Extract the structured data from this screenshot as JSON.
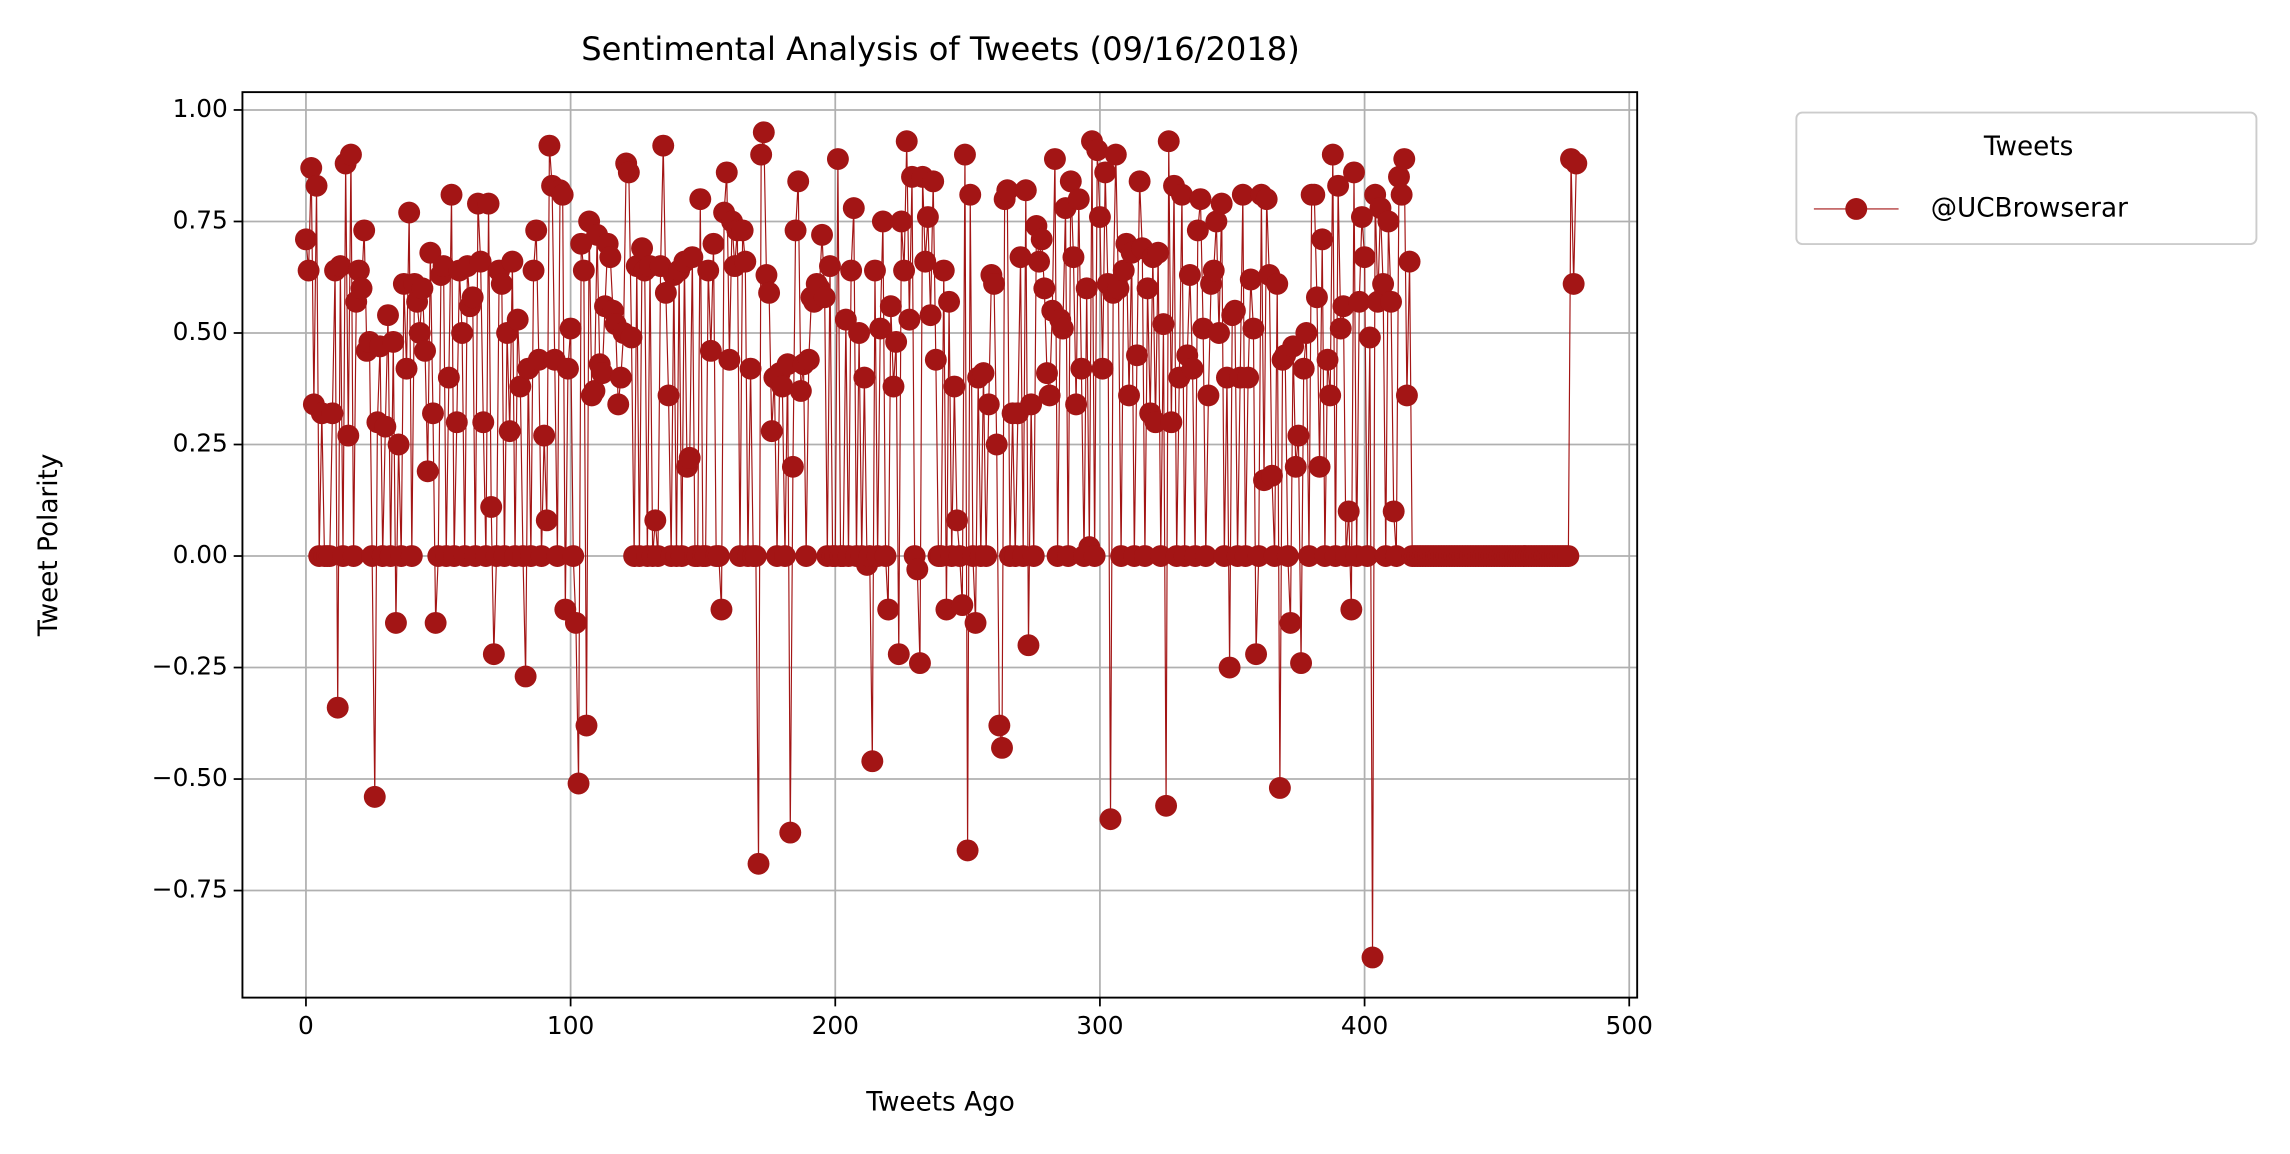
{
  "chart_data": {
    "type": "line",
    "title": "Sentimental Analysis of Tweets (09/16/2018)",
    "xlabel": "Tweets Ago",
    "ylabel": "Tweet Polarity",
    "legend_title": "Tweets",
    "legend": "upper right outside",
    "grid": true,
    "marker": "o",
    "xlim": [
      -24,
      503
    ],
    "ylim": [
      -0.99,
      1.04
    ],
    "xticks": [
      0,
      100,
      200,
      300,
      400,
      500
    ],
    "yticks": [
      {
        "value": -0.75,
        "label": "−0.75"
      },
      {
        "value": -0.5,
        "label": "−0.50"
      },
      {
        "value": -0.25,
        "label": "−0.25"
      },
      {
        "value": 0,
        "label": "0.00"
      },
      {
        "value": 0.25,
        "label": "0.25"
      },
      {
        "value": 0.5,
        "label": "0.50"
      },
      {
        "value": 0.75,
        "label": "0.75"
      },
      {
        "value": 1,
        "label": "1.00"
      }
    ],
    "x": [
      0,
      1,
      2,
      3,
      4,
      5,
      6,
      7,
      8,
      9,
      10,
      11,
      12,
      13,
      14,
      15,
      16,
      17,
      18,
      19,
      20,
      21,
      22,
      23,
      24,
      25,
      26,
      27,
      28,
      29,
      30,
      31,
      32,
      33,
      34,
      35,
      36,
      37,
      38,
      39,
      40,
      41,
      42,
      43,
      44,
      45,
      46,
      47,
      48,
      49,
      50,
      51,
      52,
      53,
      54,
      55,
      56,
      57,
      58,
      59,
      60,
      61,
      62,
      63,
      64,
      65,
      66,
      67,
      68,
      69,
      70,
      71,
      72,
      73,
      74,
      75,
      76,
      77,
      78,
      79,
      80,
      81,
      82,
      83,
      84,
      85,
      86,
      87,
      88,
      89,
      90,
      91,
      92,
      93,
      94,
      95,
      96,
      97,
      98,
      99,
      100,
      101,
      102,
      103,
      104,
      105,
      106,
      107,
      108,
      109,
      110,
      111,
      112,
      113,
      114,
      115,
      116,
      117,
      118,
      119,
      120,
      121,
      122,
      123,
      124,
      125,
      126,
      127,
      128,
      129,
      130,
      131,
      132,
      133,
      134,
      135,
      136,
      137,
      138,
      139,
      140,
      141,
      142,
      143,
      144,
      145,
      146,
      147,
      148,
      149,
      150,
      151,
      152,
      153,
      154,
      155,
      156,
      157,
      158,
      159,
      160,
      161,
      162,
      163,
      164,
      165,
      166,
      167,
      168,
      169,
      170,
      171,
      172,
      173,
      174,
      175,
      176,
      177,
      178,
      179,
      180,
      181,
      182,
      183,
      184,
      185,
      186,
      187,
      188,
      189,
      190,
      191,
      192,
      193,
      194,
      195,
      196,
      197,
      198,
      199,
      200,
      201,
      202,
      203,
      204,
      205,
      206,
      207,
      208,
      209,
      210,
      211,
      212,
      213,
      214,
      215,
      216,
      217,
      218,
      219,
      220,
      221,
      222,
      223,
      224,
      225,
      226,
      227,
      228,
      229,
      230,
      231,
      232,
      233,
      234,
      235,
      236,
      237,
      238,
      239,
      240,
      241,
      242,
      243,
      244,
      245,
      246,
      247,
      248,
      249,
      250,
      251,
      252,
      253,
      254,
      255,
      256,
      257,
      258,
      259,
      260,
      261,
      262,
      263,
      264,
      265,
      266,
      267,
      268,
      269,
      270,
      271,
      272,
      273,
      274,
      275,
      276,
      277,
      278,
      279,
      280,
      281,
      282,
      283,
      284,
      285,
      286,
      287,
      288,
      289,
      290,
      291,
      292,
      293,
      294,
      295,
      296,
      297,
      298,
      299,
      300,
      301,
      302,
      303,
      304,
      305,
      306,
      307,
      308,
      309,
      310,
      311,
      312,
      313,
      314,
      315,
      316,
      317,
      318,
      319,
      320,
      321,
      322,
      323,
      324,
      325,
      326,
      327,
      328,
      329,
      330,
      331,
      332,
      333,
      334,
      335,
      336,
      337,
      338,
      339,
      340,
      341,
      342,
      343,
      344,
      345,
      346,
      347,
      348,
      349,
      350,
      351,
      352,
      353,
      354,
      355,
      356,
      357,
      358,
      359,
      360,
      361,
      362,
      363,
      364,
      365,
      366,
      367,
      368,
      369,
      370,
      371,
      372,
      373,
      374,
      375,
      376,
      377,
      378,
      379,
      380,
      381,
      382,
      383,
      384,
      385,
      386,
      387,
      388,
      389,
      390,
      391,
      392,
      393,
      394,
      395,
      396,
      397,
      398,
      399,
      400,
      401,
      402,
      403,
      404,
      405,
      406,
      407,
      408,
      409,
      410,
      411,
      412,
      413,
      414,
      415,
      416,
      417,
      418,
      419,
      420,
      421,
      422,
      423,
      424,
      425,
      426,
      427,
      428,
      429,
      430,
      431,
      432,
      433,
      434,
      435,
      436,
      437,
      438,
      439,
      440,
      441,
      442,
      443,
      444,
      445,
      446,
      447,
      448,
      449,
      450,
      451,
      452,
      453,
      454,
      455,
      456,
      457,
      458,
      459,
      460,
      461,
      462,
      463,
      464,
      465,
      466,
      467,
      468,
      469,
      470,
      471,
      472,
      473,
      474,
      475,
      476,
      477,
      478,
      479,
      480
    ],
    "series": [
      {
        "name": "@UCBrowserar",
        "color": "#a31515",
        "values": [
          0.71,
          0.64,
          0.87,
          0.34,
          0.83,
          0,
          0.32,
          0,
          0,
          0,
          0.32,
          0.64,
          -0.34,
          0.65,
          0,
          0.88,
          0.27,
          0.9,
          0,
          0.57,
          0.64,
          0.6,
          0.73,
          0.46,
          0.48,
          0,
          -0.54,
          0.3,
          0.47,
          0,
          0.29,
          0.54,
          0,
          0.48,
          -0.15,
          0.25,
          0,
          0.61,
          0.42,
          0.77,
          0,
          0.61,
          0.57,
          0.5,
          0.6,
          0.46,
          0.19,
          0.68,
          0.32,
          -0.15,
          0,
          0.63,
          0.65,
          0,
          0.4,
          0.81,
          0,
          0.3,
          0.64,
          0.5,
          0,
          0.65,
          0.56,
          0.58,
          0,
          0.79,
          0.66,
          0.3,
          0,
          0.79,
          0.11,
          -0.22,
          0,
          0.64,
          0.61,
          0,
          0.5,
          0.28,
          0.66,
          0,
          0.53,
          0.38,
          0,
          -0.27,
          0.42,
          0,
          0.64,
          0.73,
          0.44,
          0,
          0.27,
          0.08,
          0.92,
          0.83,
          0.44,
          0,
          0.82,
          0.81,
          -0.12,
          0.42,
          0.51,
          0,
          -0.15,
          -0.51,
          0.7,
          0.64,
          -0.38,
          0.75,
          0.36,
          0.37,
          0.72,
          0.43,
          0.41,
          0.56,
          0.7,
          0.67,
          0.55,
          0.52,
          0.34,
          0.4,
          0.5,
          0.88,
          0.86,
          0.49,
          0,
          0.65,
          0,
          0.69,
          0.64,
          0,
          0.65,
          0,
          0.08,
          0,
          0.65,
          0.92,
          0.59,
          0.36,
          0,
          0.63,
          0,
          0.64,
          0,
          0.66,
          0.2,
          0.22,
          0.67,
          0,
          0,
          0.8,
          0,
          0,
          0.64,
          0.46,
          0.7,
          0,
          0,
          -0.12,
          0.77,
          0.86,
          0.44,
          0.75,
          0.65,
          0.73,
          0,
          0.73,
          0.66,
          0,
          0.42,
          0,
          0,
          -0.69,
          0.9,
          0.95,
          0.63,
          0.59,
          0.28,
          0.4,
          0,
          0.41,
          0.38,
          0,
          0.43,
          -0.62,
          0.2,
          0.73,
          0.84,
          0.37,
          0.43,
          0,
          0.44,
          0.58,
          0.57,
          0.61,
          0.6,
          0.72,
          0.58,
          0,
          0.65,
          0,
          0,
          0.89,
          0,
          0,
          0.53,
          0,
          0.64,
          0.78,
          0,
          0.5,
          0,
          0.4,
          -0.02,
          0,
          -0.46,
          0.64,
          0,
          0.51,
          0.75,
          0,
          -0.12,
          0.56,
          0.38,
          0.48,
          -0.22,
          0.75,
          0.64,
          0.93,
          0.53,
          0.85,
          0,
          -0.03,
          -0.24,
          0.85,
          0.66,
          0.76,
          0.54,
          0.84,
          0.44,
          0,
          0,
          0.64,
          -0.12,
          0.57,
          0,
          0.38,
          0.08,
          0,
          -0.11,
          0.9,
          -0.66,
          0.81,
          0,
          -0.15,
          0.4,
          0,
          0.41,
          0,
          0.34,
          0.63,
          0.61,
          0.25,
          -0.38,
          -0.43,
          0.8,
          0.82,
          0,
          0.32,
          0,
          0.32,
          0.67,
          0,
          0.82,
          -0.2,
          0.34,
          0,
          0.74,
          0.66,
          0.71,
          0.6,
          0.41,
          0.36,
          0.55,
          0.89,
          0,
          0.53,
          0.51,
          0.78,
          0,
          0.84,
          0.67,
          0.34,
          0.8,
          0.42,
          0,
          0.6,
          0.02,
          0.93,
          0,
          0.91,
          0.76,
          0.42,
          0.86,
          0.61,
          -0.59,
          0.59,
          0.9,
          0.6,
          0,
          0.64,
          0.7,
          0.36,
          0.68,
          0,
          0.45,
          0.84,
          0.69,
          0,
          0.6,
          0.32,
          0.67,
          0.3,
          0.68,
          0,
          0.52,
          -0.56,
          0.93,
          0.3,
          0.83,
          0,
          0.4,
          0.81,
          0,
          0.45,
          0.63,
          0.42,
          0,
          0.73,
          0.8,
          0.51,
          0,
          0.36,
          0.61,
          0.64,
          0.75,
          0.5,
          0.79,
          0,
          0.4,
          -0.25,
          0.54,
          0.55,
          0,
          0.4,
          0.81,
          0,
          0.4,
          0.62,
          0.51,
          -0.22,
          0,
          0.81,
          0.17,
          0.8,
          0.63,
          0.18,
          0,
          0.61,
          -0.52,
          0.44,
          0.45,
          0,
          -0.15,
          0.47,
          0.2,
          0.27,
          -0.24,
          0.42,
          0.5,
          0,
          0.81,
          0.81,
          0.58,
          0.2,
          0.71,
          0,
          0.44,
          0.36,
          0.9,
          0,
          0.83,
          0.51,
          0.56,
          0,
          0.1,
          -0.12,
          0.86,
          0,
          0.57,
          0.76,
          0.67,
          0,
          0.49,
          -0.9,
          0.81,
          0.57,
          0.78,
          0.61,
          0,
          0.75,
          0.57,
          0.1,
          0,
          0.85,
          0.81,
          0.89,
          0.36,
          0.66,
          0,
          0,
          0,
          0,
          0,
          0,
          0,
          0,
          0,
          0,
          0,
          0,
          0,
          0,
          0,
          0,
          0,
          0,
          0,
          0,
          0,
          0,
          0,
          0,
          0,
          0,
          0,
          0,
          0,
          0,
          0,
          0,
          0,
          0,
          0,
          0,
          0,
          0,
          0,
          0,
          0,
          0,
          0,
          0,
          0,
          0,
          0,
          0,
          0,
          0,
          0,
          0,
          0,
          0,
          0,
          0,
          0,
          0,
          0,
          0,
          0.89,
          0.61,
          0.88
        ]
      }
    ]
  }
}
